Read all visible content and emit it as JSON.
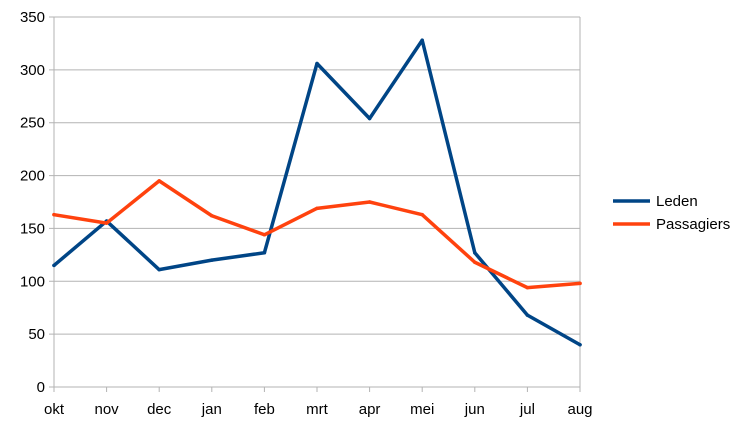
{
  "chart_data": {
    "type": "line",
    "title": "",
    "xlabel": "",
    "ylabel": "",
    "categories": [
      "okt",
      "nov",
      "dec",
      "jan",
      "feb",
      "mrt",
      "apr",
      "mei",
      "jun",
      "jul",
      "aug"
    ],
    "ylim": [
      0,
      350
    ],
    "yticks": [
      "0",
      "50",
      "100",
      "150",
      "200",
      "250",
      "300",
      "350"
    ],
    "grid": true,
    "legend_position": "right",
    "series": [
      {
        "name": "Leden",
        "color": "#004586",
        "values": [
          115,
          157,
          111,
          120,
          127,
          306,
          254,
          328,
          127,
          68,
          40
        ]
      },
      {
        "name": "Passagiers",
        "color": "#ff420e",
        "values": [
          163,
          155,
          195,
          162,
          144,
          169,
          175,
          163,
          118,
          94,
          98
        ]
      }
    ]
  }
}
